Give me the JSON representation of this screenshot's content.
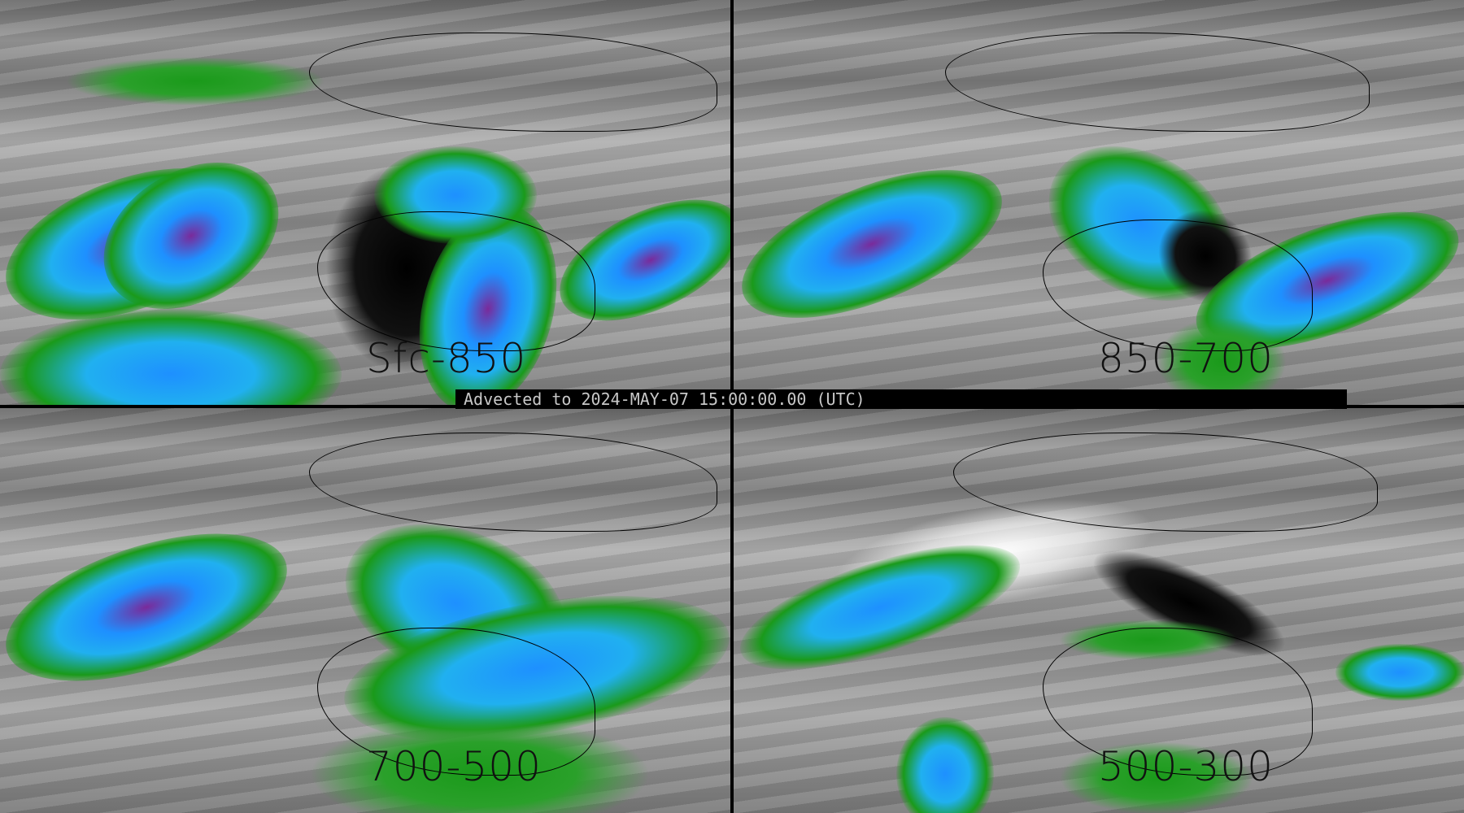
{
  "banner": "Advected to 2024-MAY-07 15:00:00.00 (UTC)",
  "panels": [
    {
      "label": "Sfc-850"
    },
    {
      "label": "850-700"
    },
    {
      "label": "700-500"
    },
    {
      "label": "500-300"
    }
  ],
  "colors": {
    "background": "#808080",
    "low": "#1a9a1a",
    "mid": "#1e90ff",
    "high": "#7a2a9a",
    "extreme": "#c00000",
    "missing": "#000000"
  }
}
